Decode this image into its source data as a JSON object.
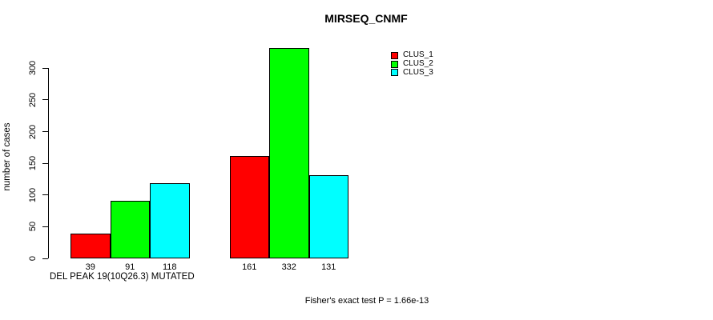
{
  "chart_data": {
    "type": "bar",
    "title": "MIRSEQ_CNMF",
    "ylabel": "number of cases",
    "xlabel": "DEL PEAK 19(10Q26.3) MUTATED",
    "annotation": "Fisher's exact test P = 1.66e-13",
    "ylim": [
      0,
      332
    ],
    "yticks": [
      0,
      50,
      100,
      150,
      200,
      250,
      300
    ],
    "grid": false,
    "background_color": "#ffffff",
    "bar_border_color": "#000000",
    "legend_position": "top-right",
    "series": [
      {
        "name": "CLUS_1",
        "color": "#ff0000",
        "values": [
          39,
          161
        ]
      },
      {
        "name": "CLUS_2",
        "color": "#00ff00",
        "values": [
          91,
          332
        ]
      },
      {
        "name": "CLUS_3",
        "color": "#00ffff",
        "values": [
          118,
          131
        ]
      }
    ],
    "groups": [
      {
        "label": "DEL PEAK 19(10Q26.3) MUTATED",
        "values": [
          39,
          91,
          118
        ]
      },
      {
        "label": "",
        "values": [
          161,
          332,
          131
        ]
      }
    ],
    "bar_value_labels": [
      "39",
      "91",
      "118",
      "161",
      "332",
      "131"
    ]
  }
}
